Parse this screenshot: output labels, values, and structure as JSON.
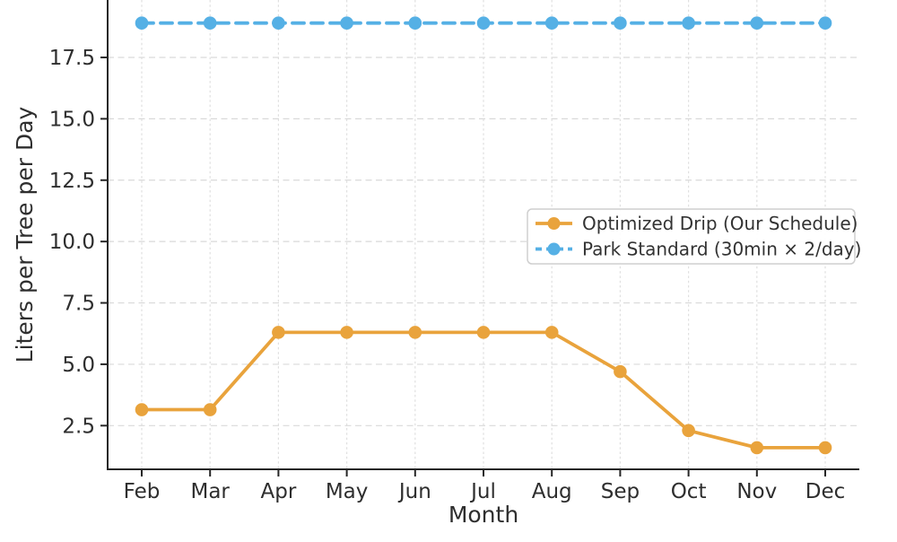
{
  "chart_data": {
    "type": "line",
    "title": "",
    "xlabel": "Month",
    "ylabel": "Liters per Tree per Day",
    "categories": [
      "Feb",
      "Mar",
      "Apr",
      "May",
      "Jun",
      "Jul",
      "Aug",
      "Sep",
      "Oct",
      "Nov",
      "Dec"
    ],
    "series": [
      {
        "name": "Optimized Drip (Our Schedule)",
        "color": "#E9A33C",
        "line_style": "solid",
        "marker": "circle",
        "values": [
          3.15,
          3.15,
          6.3,
          6.3,
          6.3,
          6.3,
          6.3,
          4.7,
          2.3,
          1.6,
          1.6
        ]
      },
      {
        "name": "Park Standard (30min × 2/day)",
        "color": "#55B0E5",
        "line_style": "dashed",
        "marker": "circle",
        "values": [
          18.9,
          18.9,
          18.9,
          18.9,
          18.9,
          18.9,
          18.9,
          18.9,
          18.9,
          18.9,
          18.9
        ]
      }
    ],
    "yticks": [
      2.5,
      5.0,
      7.5,
      10.0,
      12.5,
      15.0,
      17.5
    ],
    "ytick_labels": [
      "2.5",
      "5.0",
      "7.5",
      "10.0",
      "12.5",
      "15.0",
      "17.5"
    ],
    "ylim": [
      0.72,
      19.84
    ],
    "grid": true,
    "legend_position": "center right",
    "spine_color": "#262626",
    "grid_color": "#d9d9d9"
  }
}
